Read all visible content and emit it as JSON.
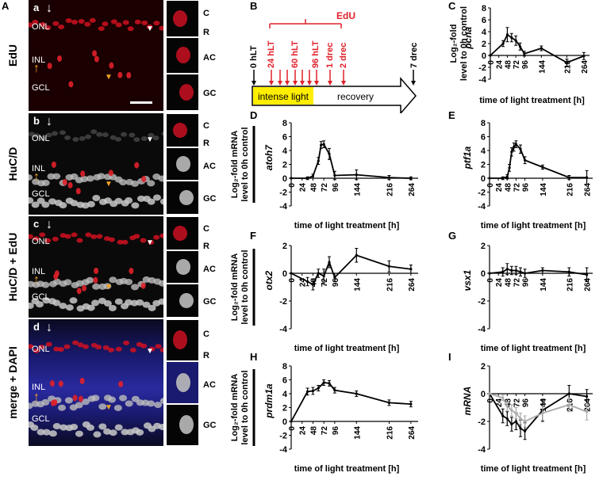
{
  "panel_letters": {
    "A": "A",
    "B": "B",
    "C": "C",
    "D": "D",
    "E": "E",
    "F": "F",
    "G": "G",
    "H": "H",
    "I": "I"
  },
  "micrographs": [
    {
      "letter": "a",
      "row_label": "EdU",
      "bg": "#1a0000",
      "cell_color": "#e0202a"
    },
    {
      "letter": "b",
      "row_label": "HuC/D",
      "bg": "#0a0a0a",
      "cell_color": "#c8c8c8"
    },
    {
      "letter": "c",
      "row_label": "HuC/D + EdU",
      "bg": "#0a0a0a",
      "cell_color": "#c8c8c8"
    },
    {
      "letter": "d",
      "row_label": "merge + DAPI",
      "bg": "#0a0a30",
      "cell_color": "#c8c8c8"
    }
  ],
  "layer_labels": {
    "onl": "ONL",
    "inl": "INL",
    "gcl": "GCL"
  },
  "inset_labels": {
    "c": "C",
    "r": "R",
    "ac": "AC",
    "gc": "GC"
  },
  "scheme": {
    "edu": "EdU",
    "hlt0": "0 hLT",
    "hlt24": "24 hLT",
    "hlt60": "60 hLT",
    "hlt96": "96 hLT",
    "drec1": "1 drec",
    "drec2": "2 drec",
    "drec7": "7 drec",
    "intense": "intense light",
    "recovery": "recovery"
  },
  "axis_common": {
    "ylabel_line1": "Log₂-fold mRNA",
    "ylabel_line2": "level to 0h control",
    "xlabel": "time of light treatment [h]"
  },
  "colors": {
    "edu_red": "#e0202a",
    "yellow": "#ffee00",
    "arrow_orange": "#f5a623",
    "gray_series": "#aaaaaa"
  },
  "chart_data": [
    {
      "panel": "C",
      "type": "line",
      "gene": "pcna",
      "ylim": [
        -4,
        8
      ],
      "yticks": [
        -4,
        -2,
        0,
        2,
        4,
        6,
        8
      ],
      "x_ticks": [
        0,
        24,
        48,
        72,
        96,
        144,
        216,
        264
      ],
      "ylabel_line1": "Log₂-fold",
      "ylabel_line2": "level to 0h control",
      "series": [
        {
          "x": [
            0,
            36,
            48,
            60,
            72,
            84,
            96,
            144,
            216,
            264
          ],
          "y": [
            0,
            2.0,
            3.5,
            3.0,
            2.5,
            1.5,
            0.3,
            1.2,
            -1.2,
            -0.1
          ],
          "err": [
            0,
            0.5,
            1.2,
            0.7,
            0.8,
            0.6,
            0.4,
            0.4,
            0.6,
            0.6
          ]
        }
      ]
    },
    {
      "panel": "D",
      "type": "line",
      "gene": "atoh7",
      "ylim": [
        -4,
        8
      ],
      "yticks": [
        -4,
        -2,
        0,
        2,
        4,
        6,
        8
      ],
      "x_ticks": [
        0,
        24,
        48,
        72,
        96,
        144,
        216,
        264
      ],
      "series": [
        {
          "x": [
            0,
            36,
            48,
            60,
            66,
            72,
            84,
            96,
            144,
            216,
            264
          ],
          "y": [
            0,
            0,
            0.3,
            2.5,
            4.8,
            4.9,
            3.5,
            0.4,
            0.5,
            0.1,
            0.0
          ],
          "err": [
            0,
            0.2,
            0.3,
            0.5,
            0.5,
            0.5,
            0.8,
            0.6,
            0.7,
            0.3,
            0.2
          ]
        }
      ]
    },
    {
      "panel": "E",
      "type": "line",
      "gene": "ptf1a",
      "ylim": [
        -4,
        8
      ],
      "yticks": [
        -4,
        -2,
        0,
        2,
        4,
        6,
        8
      ],
      "x_ticks": [
        0,
        24,
        48,
        72,
        96,
        144,
        216,
        264
      ],
      "series": [
        {
          "x": [
            0,
            36,
            48,
            54,
            60,
            66,
            72,
            84,
            96,
            144,
            216,
            264
          ],
          "y": [
            0,
            0,
            0.2,
            1.5,
            3.8,
            4.5,
            4.9,
            4.2,
            2.6,
            1.6,
            0.1,
            0.1
          ],
          "err": [
            0,
            0.2,
            0.3,
            0.5,
            0.6,
            0.6,
            0.5,
            0.6,
            0.5,
            0.3,
            0.3,
            1.0
          ]
        }
      ]
    },
    {
      "panel": "F",
      "type": "line",
      "gene": "otx2",
      "ylim": [
        -4,
        2
      ],
      "yticks": [
        -4,
        -2,
        0,
        2
      ],
      "x_ticks": [
        0,
        24,
        48,
        72,
        96,
        144,
        216,
        264
      ],
      "series": [
        {
          "x": [
            0,
            36,
            48,
            60,
            72,
            84,
            96,
            144,
            216,
            264
          ],
          "y": [
            0,
            -0.6,
            -0.8,
            0.0,
            -0.2,
            0.8,
            -0.3,
            1.3,
            0.5,
            0.3
          ],
          "err": [
            0,
            0.3,
            0.4,
            0.3,
            0.5,
            0.4,
            0.3,
            0.5,
            0.4,
            0.3
          ]
        }
      ]
    },
    {
      "panel": "G",
      "type": "line",
      "gene": "vsx1",
      "ylim": [
        -4,
        2
      ],
      "yticks": [
        -4,
        -2,
        0,
        2
      ],
      "x_ticks": [
        0,
        24,
        48,
        72,
        96,
        144,
        216,
        264
      ],
      "series": [
        {
          "x": [
            0,
            36,
            48,
            60,
            72,
            84,
            96,
            144,
            216,
            264
          ],
          "y": [
            0,
            0.1,
            0.3,
            0.2,
            0.2,
            0.1,
            0.0,
            0.2,
            0.1,
            -0.1
          ],
          "err": [
            0,
            0.3,
            0.4,
            0.3,
            0.3,
            0.3,
            0.3,
            0.2,
            0.3,
            0.5
          ]
        }
      ]
    },
    {
      "panel": "H",
      "type": "line",
      "gene": "prdm1a",
      "ylim": [
        -4,
        8
      ],
      "yticks": [
        -4,
        -2,
        0,
        2,
        4,
        6,
        8
      ],
      "x_ticks": [
        0,
        24,
        48,
        72,
        96,
        144,
        216,
        264
      ],
      "series": [
        {
          "x": [
            0,
            36,
            48,
            60,
            72,
            84,
            96,
            144,
            216,
            264
          ],
          "y": [
            0,
            4.3,
            4.4,
            4.8,
            5.6,
            5.5,
            4.5,
            4.0,
            2.7,
            2.5
          ],
          "err": [
            0,
            0.5,
            0.5,
            0.4,
            0.4,
            0.4,
            0.4,
            0.4,
            0.4,
            0.4
          ]
        }
      ]
    },
    {
      "panel": "I",
      "type": "line",
      "gene": "mRNA",
      "ylim": [
        -4,
        2
      ],
      "yticks": [
        -4,
        -2,
        0,
        2
      ],
      "x_ticks": [
        0,
        24,
        48,
        72,
        96,
        144,
        216,
        264
      ],
      "series": [
        {
          "color": "#000000",
          "x": [
            0,
            36,
            48,
            60,
            72,
            84,
            96,
            144,
            216,
            264
          ],
          "y": [
            0,
            -1.6,
            -1.8,
            -2.2,
            -2.0,
            -2.5,
            -2.7,
            -1.2,
            0.0,
            -0.2
          ],
          "err": [
            0,
            0.5,
            0.5,
            0.5,
            0.6,
            0.6,
            0.6,
            0.8,
            0.6,
            0.5
          ]
        },
        {
          "color": "#aaaaaa",
          "x": [
            0,
            36,
            48,
            60,
            72,
            84,
            96,
            144,
            216,
            264
          ],
          "y": [
            0,
            -0.3,
            -0.9,
            -1.2,
            -1.4,
            -1.8,
            -2.0,
            -1.4,
            -0.8,
            -1.3
          ],
          "err": [
            0,
            0.2,
            0.3,
            0.4,
            0.4,
            0.4,
            0.4,
            0.5,
            0.5,
            0.6
          ]
        }
      ]
    }
  ]
}
